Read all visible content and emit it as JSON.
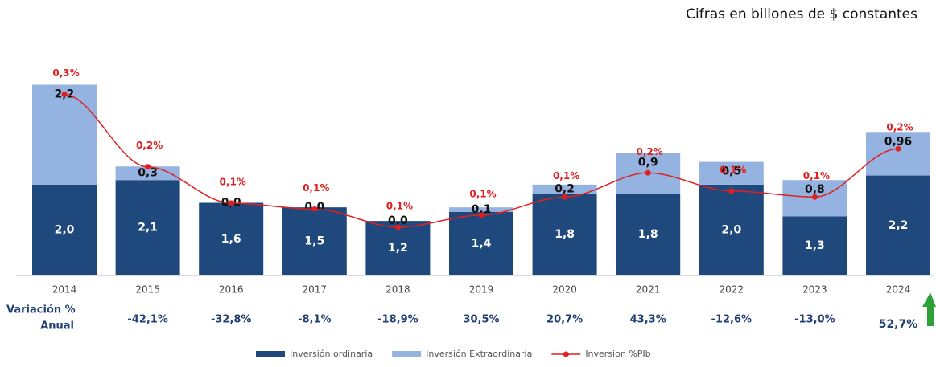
{
  "chart_data": {
    "type": "bar",
    "stacked": true,
    "title": "Cifras en billones de $ constantes",
    "categories": [
      "2014",
      "2015",
      "2016",
      "2017",
      "2018",
      "2019",
      "2020",
      "2021",
      "2022",
      "2023",
      "2024"
    ],
    "ylim": [
      0,
      4.65
    ],
    "y2lim": [
      0,
      0.35
    ],
    "series": [
      {
        "name": "Inversión ordinaria",
        "color": "#1f497d",
        "values": [
          2.0,
          2.1,
          1.6,
          1.5,
          1.2,
          1.4,
          1.8,
          1.8,
          2.0,
          1.3,
          2.2
        ],
        "value_labels": [
          "2,0",
          "2,1",
          "1,6",
          "1,5",
          "1,2",
          "1,4",
          "1,8",
          "1,8",
          "2,0",
          "1,3",
          "2,2"
        ]
      },
      {
        "name": "Inversión Extraordinaria",
        "color": "#95b3e0",
        "values": [
          2.2,
          0.3,
          0.0,
          0.0,
          0.0,
          0.1,
          0.2,
          0.9,
          0.5,
          0.8,
          0.96
        ],
        "value_labels": [
          "2,2",
          "0,3",
          "0,0",
          "0,0",
          "0,0",
          "0,1",
          "0,2",
          "0,9",
          "0,5",
          "0,8",
          "0,96"
        ]
      },
      {
        "name": "Inversion %PIb",
        "color": "#e02020",
        "type": "line",
        "axis": "y2",
        "values": [
          0.3,
          0.18,
          0.12,
          0.11,
          0.08,
          0.1,
          0.13,
          0.17,
          0.14,
          0.13,
          0.21
        ],
        "value_labels": [
          "0,3%",
          "0,2%",
          "0,1%",
          "0,1%",
          "0,1%",
          "0,1%",
          "0,1%",
          "0,2%",
          "0,1%",
          "0,1%",
          "0,2%"
        ]
      }
    ],
    "variation": {
      "label_lines": [
        "Variación %",
        "Anual"
      ],
      "values": [
        null,
        -42.1,
        -32.8,
        -8.1,
        -18.9,
        30.5,
        20.7,
        43.3,
        -12.6,
        -13.0,
        52.7
      ],
      "value_labels": [
        null,
        "-42,1%",
        "-32,8%",
        "-8,1%",
        "-18,9%",
        "30,5%",
        "20,7%",
        "43,3%",
        "-12,6%",
        "-13,0%",
        "52,7%"
      ]
    }
  }
}
